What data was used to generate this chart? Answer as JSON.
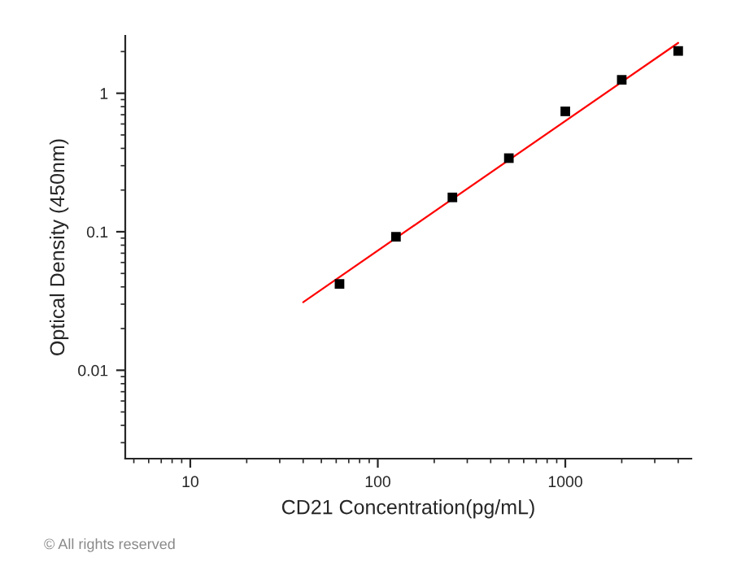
{
  "chart_data": {
    "type": "scatter",
    "xlabel": "CD21 Concentration(pg/mL)",
    "ylabel": "Optical Density (450nm)",
    "log": "xy",
    "grid": false,
    "legend": false,
    "xlim": [
      4.5,
      4700
    ],
    "xticks": [
      10,
      100,
      1000
    ],
    "ylim": [
      0.0023,
      2.6
    ],
    "yticks": [
      0.01,
      0.1,
      1
    ],
    "series": [
      {
        "marker": "square",
        "color": "#000000",
        "x": [
          62.5,
          125,
          250,
          500,
          1000,
          2000,
          4000
        ],
        "values": [
          0.042,
          0.092,
          0.177,
          0.34,
          0.74,
          1.25,
          2.02
        ]
      },
      {
        "type": "line",
        "color": "#ff0000",
        "x": [
          40,
          4000
        ],
        "values": [
          0.031,
          2.31
        ]
      }
    ],
    "annotations": [
      "© All rights reserved"
    ]
  }
}
